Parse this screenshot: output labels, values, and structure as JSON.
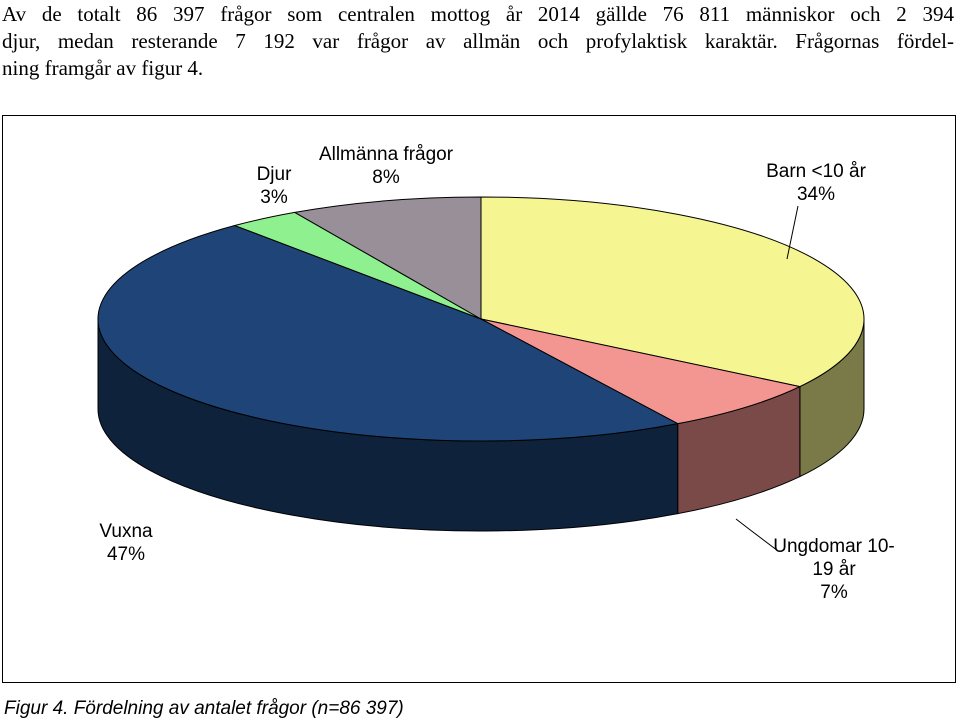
{
  "text": {
    "lines": [
      "Av de totalt 86 397 frågor som centralen mottog år 2014 gällde 76 811 människor och 2 394",
      "djur, medan resterande 7 192 var frågor av allmän och profylaktisk karaktär. Frågornas fördel-",
      "ning framgår av figur 4."
    ]
  },
  "chart_data": {
    "type": "pie",
    "categories": [
      "Barn <10 år",
      "Ungdomar 10-19 år",
      "Vuxna",
      "Djur",
      "Allmänna frågor"
    ],
    "values": [
      34,
      7,
      47,
      3,
      8
    ],
    "value_labels": [
      "34%",
      "7%",
      "47%",
      "3%",
      "8%"
    ],
    "colors": [
      "#f5f591",
      "#f39591",
      "#1f4578",
      "#8ef08e",
      "#988f98"
    ]
  },
  "caption": "Figur 4. Fördelning av antalet frågor (n=86 397)"
}
